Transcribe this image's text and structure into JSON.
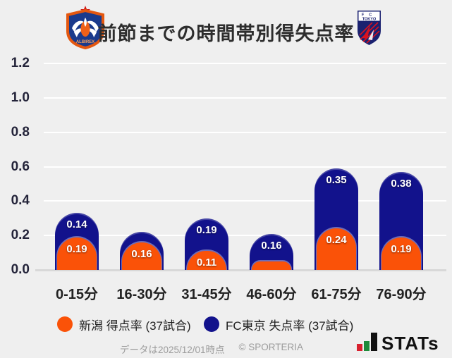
{
  "header": {
    "title": "前節までの時間帯別得失点率",
    "left_logo_team": "アルビレックス新潟",
    "right_logo_team": "FC東京"
  },
  "chart_data": {
    "type": "bar",
    "stacked": true,
    "categories": [
      "0-15分",
      "16-30分",
      "31-45分",
      "46-60分",
      "61-75分",
      "76-90分"
    ],
    "series": [
      {
        "name": "新潟 得点率 (37試合)",
        "color": "#fa5208",
        "values": [
          0.19,
          0.16,
          0.11,
          0.05,
          0.24,
          0.19
        ],
        "data_labels": [
          "0.19",
          "0.16",
          "0.11",
          null,
          "0.24",
          "0.19"
        ]
      },
      {
        "name": "FC東京 失点率 (37試合)",
        "color": "#12128c",
        "values": [
          0.14,
          0.06,
          0.19,
          0.16,
          0.35,
          0.38
        ],
        "data_labels": [
          "0.14",
          null,
          "0.19",
          "0.16",
          "0.35",
          "0.38"
        ]
      }
    ],
    "title": "前節までの時間帯別得失点率",
    "xlabel": "",
    "ylabel": "",
    "ylim": [
      0,
      1.2
    ],
    "yticks": [
      0,
      0.2,
      0.4,
      0.6,
      0.8,
      1.0,
      1.2
    ],
    "ytick_labels": [
      "0.0",
      "0.2",
      "0.4",
      "0.6",
      "0.8",
      "1.0",
      "1.2"
    ],
    "grid": "horizontal",
    "legend_position": "bottom",
    "colors": {
      "background": "#efefef",
      "gridline": "#ffffff",
      "axis_line": "#d8d8d8",
      "niigata_orange": "#fa5208",
      "fctokyo_navy": "#12128c"
    }
  },
  "legend": {
    "items": [
      {
        "label": "新潟 得点率 (37試合)",
        "color": "#fa5208"
      },
      {
        "label": "FC東京 失点率 (37試合)",
        "color": "#12128c"
      }
    ]
  },
  "footer": {
    "data_as_of": "データは2025/12/01時点",
    "copyright": "© SPORTERIA",
    "brand": "STATs"
  }
}
